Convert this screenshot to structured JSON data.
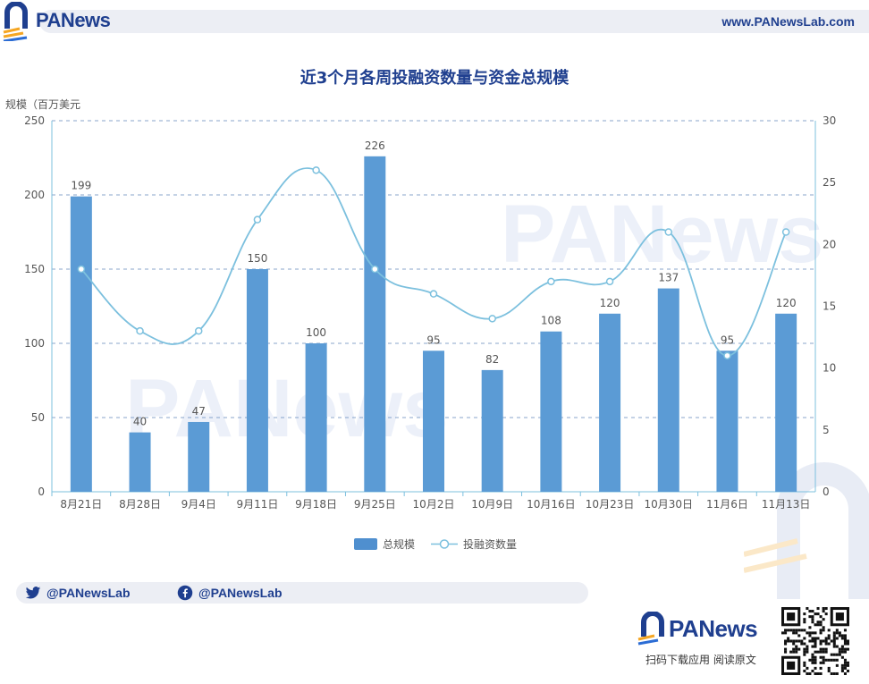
{
  "header": {
    "brand": "PANews",
    "site": "www.PANewsLab.com"
  },
  "watermark": "PANews",
  "chart_data": {
    "type": "bar",
    "title": "近3个月各周投融资数量与资金总规模",
    "ylabel": "规模（百万美元",
    "categories": [
      "8月21日",
      "8月28日",
      "9月4日",
      "9月11日",
      "9月18日",
      "9月25日",
      "10月2日",
      "10月9日",
      "10月16日",
      "10月23日",
      "10月30日",
      "11月6日",
      "11月13日"
    ],
    "series": [
      {
        "name": "总规模",
        "type": "bar",
        "axis": "left",
        "values": [
          199,
          40,
          47,
          150,
          100,
          226,
          95,
          82,
          108,
          120,
          137,
          95,
          120
        ]
      },
      {
        "name": "投融资数量",
        "type": "line",
        "axis": "right",
        "values": [
          18,
          13,
          13,
          22,
          26,
          18,
          16,
          14,
          17,
          17,
          21,
          11,
          21
        ]
      }
    ],
    "ylim_left": [
      0,
      250
    ],
    "ylim_right": [
      0,
      30
    ],
    "yticks_left": [
      0,
      50,
      100,
      150,
      200,
      250
    ],
    "yticks_right": [
      0,
      5,
      10,
      15,
      20,
      25,
      30
    ],
    "grid": true,
    "legend": "bottom",
    "colors": {
      "bar": "#5b9bd5",
      "line": "#7cc0de",
      "title": "#1f3f8f"
    }
  },
  "footer": {
    "twitter": "@PANewsLab",
    "facebook": "@PANewsLab",
    "brand": "PANews",
    "caption": "扫码下载应用  阅读原文"
  }
}
